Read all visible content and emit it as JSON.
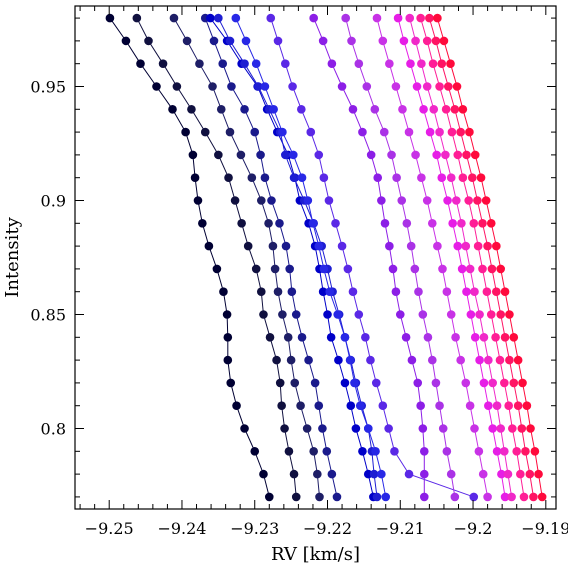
{
  "chart_data": {
    "type": "line",
    "xlabel": "RV [km/s]",
    "ylabel": "Intensity",
    "xlim": [
      -9.2547,
      -9.1886
    ],
    "ylim": [
      0.7647,
      0.9853
    ],
    "xticks": [
      -9.25,
      -9.24,
      -9.23,
      -9.22,
      -9.21,
      -9.2,
      -9.19
    ],
    "xtick_labels": [
      "−9.25",
      "−9.24",
      "−9.23",
      "−9.22",
      "−9.21",
      "−9.2",
      "−9.19"
    ],
    "yticks": [
      0.8,
      0.85,
      0.9,
      0.95
    ],
    "ytick_labels": [
      "0.8",
      "0.85",
      "0.9",
      "0.95"
    ],
    "grid": false,
    "intensity_levels": [
      0.98,
      0.97,
      0.96,
      0.95,
      0.94,
      0.93,
      0.92,
      0.91,
      0.9,
      0.89,
      0.88,
      0.87,
      0.86,
      0.85,
      0.84,
      0.83,
      0.82,
      0.81,
      0.8,
      0.79,
      0.78,
      0.77
    ],
    "series": [
      {
        "color": "#000033",
        "rv": [
          -9.2499,
          -9.2477,
          -9.2457,
          -9.2435,
          -9.2413,
          -9.2395,
          -9.2385,
          -9.2382,
          -9.2378,
          -9.2372,
          -9.2363,
          -9.2352,
          -9.2343,
          -9.2338,
          -9.2337,
          -9.2337,
          -9.2333,
          -9.2325,
          -9.2314,
          -9.23,
          -9.2288,
          -9.228
        ]
      },
      {
        "color": "#10103f",
        "rv": [
          -9.2462,
          -9.2446,
          -9.2426,
          -9.2407,
          -9.2387,
          -9.2368,
          -9.235,
          -9.2336,
          -9.2327,
          -9.2318,
          -9.2309,
          -9.2298,
          -9.2291,
          -9.2288,
          -9.2279,
          -9.227,
          -9.2265,
          -9.2263,
          -9.2259,
          -9.2253,
          -9.2246,
          -9.2243
        ]
      },
      {
        "color": "#1e1e66",
        "rv": [
          -9.2411,
          -9.2393,
          -9.2376,
          -9.2358,
          -9.2346,
          -9.2334,
          -9.2319,
          -9.2304,
          -9.2291,
          -9.2281,
          -9.2275,
          -9.2272,
          -9.2268,
          -9.2262,
          -9.2254,
          -9.225,
          -9.2245,
          -9.2237,
          -9.2228,
          -9.2219,
          -9.2214,
          -9.2211
        ]
      },
      {
        "color": "#1a1a8c",
        "rv": [
          -9.2368,
          -9.2356,
          -9.2344,
          -9.2332,
          -9.2314,
          -9.23,
          -9.2292,
          -9.2286,
          -9.2277,
          -9.2266,
          -9.2257,
          -9.2252,
          -9.2249,
          -9.2243,
          -9.2235,
          -9.2226,
          -9.2217,
          -9.2212,
          -9.2207,
          -9.2201,
          -9.2194,
          -9.2187
        ]
      },
      {
        "color": "#0000c8",
        "rv": [
          -9.2361,
          -9.2338,
          -9.2318,
          -9.2296,
          -9.2283,
          -9.2269,
          -9.2254,
          -9.2245,
          -9.2238,
          -9.2226,
          -9.2217,
          -9.2211,
          -9.2206,
          -9.22,
          -9.2195,
          -9.2185,
          -9.2176,
          -9.2168,
          -9.2161,
          -9.2152,
          -9.2144,
          -9.2137
        ]
      },
      {
        "color": "#1e1ed2",
        "rv": [
          -9.235,
          -9.2334,
          -9.2314,
          -9.2295,
          -9.228,
          -9.2265,
          -9.2258,
          -9.2246,
          -9.2232,
          -9.2219,
          -9.2208,
          -9.22,
          -9.2193,
          -9.2184,
          -9.2176,
          -9.2168,
          -9.2161,
          -9.2153,
          -9.2144,
          -9.2139,
          -9.2136,
          -9.2132
        ]
      },
      {
        "color": "#2828e6",
        "rv": [
          -9.2326,
          -9.2312,
          -9.2298,
          -9.2286,
          -9.2274,
          -9.2262,
          -9.2247,
          -9.2235,
          -9.2227,
          -9.222,
          -9.2212,
          -9.2205,
          -9.2197,
          -9.2186,
          -9.2176,
          -9.2169,
          -9.2163,
          -9.2155,
          -9.2144,
          -9.2134,
          -9.2126,
          -9.212
        ]
      },
      {
        "color": "#5a28e6",
        "rv": [
          -9.2278,
          -9.2268,
          -9.2258,
          -9.2248,
          -9.2236,
          -9.2223,
          -9.2212,
          -9.2205,
          -9.2198,
          -9.2189,
          -9.218,
          -9.2172,
          -9.2165,
          -9.2157,
          -9.2148,
          -9.2141,
          -9.2133,
          -9.2124,
          -9.2116,
          -9.2108,
          -9.2088,
          -9.1999
        ]
      },
      {
        "color": "#8c1ee6",
        "rv": [
          -9.2219,
          -9.2206,
          -9.2194,
          -9.218,
          -9.2165,
          -9.2152,
          -9.214,
          -9.2131,
          -9.2126,
          -9.2121,
          -9.2115,
          -9.211,
          -9.2106,
          -9.21,
          -9.2092,
          -9.2084,
          -9.2076,
          -9.2072,
          -9.2069,
          -9.2067,
          -9.2067,
          -9.2067
        ]
      },
      {
        "color": "#aa32e6",
        "rv": [
          -9.2175,
          -9.2167,
          -9.2157,
          -9.2146,
          -9.2135,
          -9.2122,
          -9.2112,
          -9.2105,
          -9.2098,
          -9.2091,
          -9.2085,
          -9.208,
          -9.2075,
          -9.2069,
          -9.2062,
          -9.2056,
          -9.2051,
          -9.2046,
          -9.2041,
          -9.2036,
          -9.203,
          -9.2025
        ]
      },
      {
        "color": "#c832e6",
        "rv": [
          -9.2132,
          -9.2124,
          -9.2115,
          -9.2106,
          -9.2097,
          -9.2088,
          -9.2079,
          -9.2071,
          -9.2063,
          -9.2056,
          -9.2049,
          -9.2042,
          -9.2036,
          -9.203,
          -9.2024,
          -9.2017,
          -9.201,
          -9.2004,
          -9.1998,
          -9.1992,
          -9.1986,
          -9.198
        ]
      },
      {
        "color": "#e61ee6",
        "rv": [
          -9.2103,
          -9.2095,
          -9.2086,
          -9.2077,
          -9.2068,
          -9.2059,
          -9.205,
          -9.2043,
          -9.2035,
          -9.2028,
          -9.2021,
          -9.2015,
          -9.2009,
          -9.2003,
          -9.1997,
          -9.1991,
          -9.1985,
          -9.1979,
          -9.1973,
          -9.1967,
          -9.1961,
          -9.1956
        ]
      },
      {
        "color": "#f028c8",
        "rv": [
          -9.2087,
          -9.2079,
          -9.2071,
          -9.2063,
          -9.2054,
          -9.2046,
          -9.2038,
          -9.203,
          -9.2023,
          -9.2016,
          -9.201,
          -9.2004,
          -9.1998,
          -9.1991,
          -9.1985,
          -9.1979,
          -9.1973,
          -9.1967,
          -9.1962,
          -9.1957,
          -9.1952,
          -9.1947
        ]
      },
      {
        "color": "#ff1e96",
        "rv": [
          -9.2072,
          -9.2063,
          -9.2055,
          -9.2046,
          -9.2037,
          -9.2029,
          -9.2021,
          -9.2014,
          -9.2006,
          -9.1999,
          -9.1993,
          -9.1987,
          -9.1981,
          -9.1975,
          -9.1969,
          -9.1963,
          -9.1957,
          -9.1951,
          -9.1946,
          -9.194,
          -9.1935,
          -9.193
        ]
      },
      {
        "color": "#ff1464",
        "rv": [
          -9.206,
          -9.2051,
          -9.2043,
          -9.2034,
          -9.2025,
          -9.2017,
          -9.2009,
          -9.2001,
          -9.1994,
          -9.1987,
          -9.198,
          -9.1974,
          -9.1968,
          -9.1962,
          -9.1956,
          -9.195,
          -9.1944,
          -9.1938,
          -9.1933,
          -9.1928,
          -9.1922,
          -9.1917
        ]
      },
      {
        "color": "#ff0a3c",
        "rv": [
          -9.2049,
          -9.204,
          -9.2031,
          -9.2022,
          -9.2014,
          -9.2005,
          -9.1997,
          -9.1989,
          -9.1982,
          -9.1975,
          -9.1968,
          -9.1962,
          -9.1956,
          -9.195,
          -9.1944,
          -9.1938,
          -9.1932,
          -9.1926,
          -9.1921,
          -9.1915,
          -9.191,
          -9.1905
        ]
      }
    ]
  }
}
